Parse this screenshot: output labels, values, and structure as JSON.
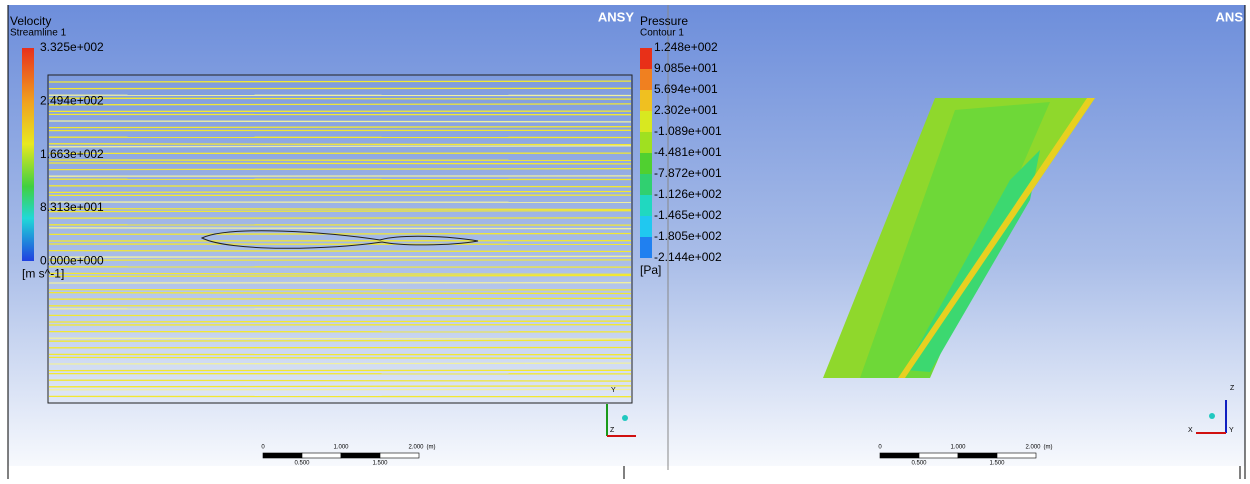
{
  "left_view": {
    "logo": "ANSY",
    "title": "Velocity",
    "subtitle": "Streamline 1",
    "legend_labels": [
      "3.325e+002",
      "2.494e+002",
      "1.663e+002",
      "8.313e+001",
      "0.000e+000"
    ],
    "unit": "[m s^-1]",
    "scale_labels_top": [
      "0",
      "1.000",
      "2.000",
      "(m)"
    ],
    "scale_labels_bottom": [
      "0.500",
      "1.500"
    ],
    "axis_labels": [
      "Y",
      "Z"
    ]
  },
  "right_view": {
    "logo": "ANS",
    "title": "Pressure",
    "subtitle": "Contour 1",
    "legend_labels": [
      "1.248e+002",
      "9.085e+001",
      "5.694e+001",
      "2.302e+001",
      "-1.089e+001",
      "-4.481e+001",
      "-7.872e+001",
      "-1.126e+002",
      "-1.465e+002",
      "-1.805e+002",
      "-2.144e+002"
    ],
    "unit": "[Pa]",
    "scale_labels_top": [
      "0",
      "1.000",
      "2.000",
      "(m)"
    ],
    "scale_labels_bottom": [
      "0.500",
      "1.500"
    ],
    "axis_labels": [
      "Z",
      "X",
      "Y"
    ]
  }
}
